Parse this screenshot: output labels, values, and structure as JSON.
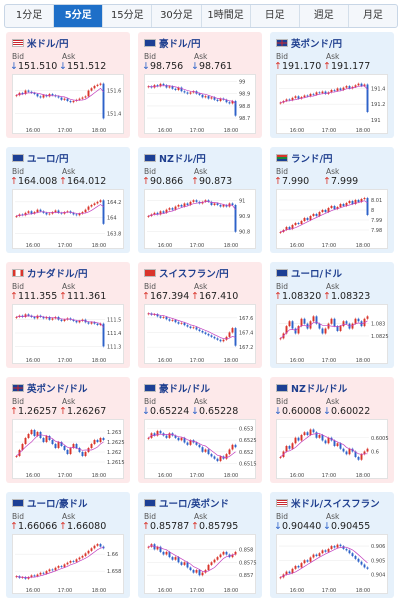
{
  "tabs": [
    {
      "label": "1分足",
      "active": false
    },
    {
      "label": "5分足",
      "active": true
    },
    {
      "label": "15分足",
      "active": false
    },
    {
      "label": "30分足",
      "active": false
    },
    {
      "label": "1時間足",
      "active": false
    },
    {
      "label": "日足",
      "active": false
    },
    {
      "label": "週足",
      "active": false
    },
    {
      "label": "月足",
      "active": false
    }
  ],
  "labels": {
    "bid": "Bid",
    "ask": "Ask"
  },
  "time_labels": [
    "16:00",
    "17:00",
    "18:00"
  ],
  "colors": {
    "up_candle": "#d9342b",
    "down_candle": "#2d62c9",
    "ma_line": "#c23fbf",
    "link": "#1f3f8f"
  },
  "pairs": [
    {
      "name": "米ドル/円",
      "flag": "us-flag-icon",
      "dir": "down",
      "bid": "151.510",
      "ask": "151.512",
      "yticks": [
        "151.6",
        "151.4"
      ],
      "ylim": [
        151.32,
        151.7
      ],
      "trend": [
        151.56,
        151.58,
        151.57,
        151.6,
        151.59,
        151.58,
        151.57,
        151.55,
        151.54,
        151.56,
        151.55,
        151.57,
        151.56,
        151.55,
        151.54,
        151.52,
        151.53,
        151.51,
        151.5,
        151.51,
        151.52,
        151.53,
        151.54,
        151.55,
        151.6,
        151.62,
        151.64,
        151.65,
        151.66,
        151.36
      ]
    },
    {
      "name": "豪ドル/円",
      "flag": "au-flag-icon",
      "dir": "down",
      "bid": "98.756",
      "ask": "98.761",
      "yticks": [
        "99",
        "98.9",
        "98.8",
        "98.7"
      ],
      "ylim": [
        98.66,
        99.02
      ],
      "trend": [
        98.96,
        98.95,
        98.97,
        98.96,
        98.98,
        98.97,
        98.95,
        98.96,
        98.94,
        98.93,
        98.95,
        98.92,
        98.91,
        98.9,
        98.91,
        98.92,
        98.9,
        98.89,
        98.87,
        98.88,
        98.86,
        98.87,
        98.85,
        98.84,
        98.86,
        98.85,
        98.83,
        98.82,
        98.84,
        98.72
      ]
    },
    {
      "name": "英ポンド/円",
      "flag": "uk-flag-icon",
      "dir": "up",
      "bid": "191.170",
      "ask": "191.177",
      "yticks": [
        "191.4",
        "191.2",
        "191"
      ],
      "ylim": [
        190.96,
        191.52
      ],
      "trend": [
        191.22,
        191.24,
        191.26,
        191.25,
        191.28,
        191.3,
        191.27,
        191.29,
        191.31,
        191.3,
        191.33,
        191.32,
        191.35,
        191.34,
        191.36,
        191.33,
        191.35,
        191.38,
        191.37,
        191.4,
        191.38,
        191.41,
        191.43,
        191.4,
        191.42,
        191.44,
        191.46,
        191.43,
        191.45,
        191.1
      ]
    },
    {
      "name": "ユーロ/円",
      "flag": "eu-flag-icon",
      "dir": "up",
      "bid": "164.008",
      "ask": "164.012",
      "yticks": [
        "164.2",
        "164",
        "163.8"
      ],
      "ylim": [
        163.74,
        164.3
      ],
      "trend": [
        164.02,
        164.04,
        164.03,
        164.06,
        164.08,
        164.05,
        164.07,
        164.1,
        164.08,
        164.06,
        164.04,
        164.05,
        164.07,
        164.09,
        164.06,
        164.05,
        164.07,
        164.08,
        164.06,
        164.04,
        164.03,
        164.05,
        164.07,
        164.1,
        164.14,
        164.16,
        164.18,
        164.2,
        164.22,
        163.92
      ]
    },
    {
      "name": "NZドル/円",
      "flag": "nz-flag-icon",
      "dir": "up",
      "bid": "90.866",
      "ask": "90.873",
      "yticks": [
        "91",
        "90.9",
        "90.8"
      ],
      "ylim": [
        90.76,
        91.04
      ],
      "trend": [
        90.9,
        90.91,
        90.92,
        90.91,
        90.93,
        90.92,
        90.94,
        90.95,
        90.94,
        90.96,
        90.97,
        90.96,
        90.98,
        90.97,
        90.99,
        91.0,
        90.99,
        90.98,
        90.99,
        91.0,
        90.99,
        90.97,
        90.98,
        90.97,
        90.96,
        90.97,
        90.96,
        90.98,
        90.97,
        90.8
      ]
    },
    {
      "name": "ランド/円",
      "flag": "za-flag-icon",
      "dir": "up",
      "bid": "7.990",
      "ask": "7.999",
      "yticks": [
        "8.01",
        "8",
        "7.99",
        "7.98"
      ],
      "ylim": [
        7.972,
        8.016
      ],
      "trend": [
        7.978,
        7.98,
        7.983,
        7.981,
        7.985,
        7.987,
        7.986,
        7.989,
        7.992,
        7.99,
        7.994,
        7.996,
        7.994,
        7.998,
        8.0,
        7.998,
        8.002,
        8.004,
        8.001,
        8.003,
        8.006,
        8.004,
        8.007,
        8.009,
        8.006,
        8.01,
        8.008,
        8.011,
        8.012,
        7.995
      ]
    },
    {
      "name": "カナダドル/円",
      "flag": "ca-flag-icon",
      "dir": "up",
      "bid": "111.355",
      "ask": "111.361",
      "yticks": [
        "111.5",
        "111.4",
        "111.3"
      ],
      "ylim": [
        111.25,
        111.58
      ],
      "trend": [
        111.52,
        111.53,
        111.52,
        111.54,
        111.53,
        111.52,
        111.51,
        111.53,
        111.52,
        111.51,
        111.52,
        111.5,
        111.51,
        111.52,
        111.5,
        111.49,
        111.5,
        111.51,
        111.5,
        111.49,
        111.48,
        111.49,
        111.5,
        111.48,
        111.47,
        111.48,
        111.47,
        111.46,
        111.47,
        111.3
      ]
    },
    {
      "name": "スイスフラン/円",
      "flag": "ch-flag-icon",
      "dir": "up",
      "bid": "167.394",
      "ask": "167.410",
      "yticks": [
        "167.6",
        "167.4",
        "167.2"
      ],
      "ylim": [
        167.12,
        167.72
      ],
      "trend": [
        167.66,
        167.64,
        167.65,
        167.62,
        167.6,
        167.61,
        167.58,
        167.56,
        167.57,
        167.54,
        167.52,
        167.53,
        167.5,
        167.48,
        167.46,
        167.47,
        167.44,
        167.42,
        167.4,
        167.38,
        167.36,
        167.34,
        167.32,
        167.3,
        167.28,
        167.3,
        167.34,
        167.4,
        167.46,
        167.22
      ]
    },
    {
      "name": "ユーロ/ドル",
      "flag": "eu-flag-icon",
      "dir": "up",
      "bid": "1.08320",
      "ask": "1.08323",
      "yticks": [
        "1.083",
        "1.0825"
      ],
      "ylim": [
        1.0818,
        1.0836
      ],
      "trend": [
        1.0824,
        1.0826,
        1.0829,
        1.0831,
        1.0828,
        1.0826,
        1.0829,
        1.0832,
        1.083,
        1.0828,
        1.0831,
        1.0833,
        1.083,
        1.0828,
        1.0826,
        1.0828,
        1.083,
        1.0832,
        1.0829,
        1.0827,
        1.0829,
        1.0831,
        1.083,
        1.0828,
        1.083,
        1.0832,
        1.0831,
        1.0829,
        1.0832,
        1.0833
      ]
    },
    {
      "name": "英ポンド/ドル",
      "flag": "uk-flag-icon",
      "dir": "up",
      "bid": "1.26257",
      "ask": "1.26267",
      "yticks": [
        "1.263",
        "1.2625",
        "1.262",
        "1.2615"
      ],
      "ylim": [
        1.2612,
        1.2634
      ],
      "trend": [
        1.2618,
        1.2621,
        1.2624,
        1.2627,
        1.2629,
        1.2631,
        1.2628,
        1.263,
        1.2627,
        1.2625,
        1.2628,
        1.2626,
        1.2624,
        1.2622,
        1.2625,
        1.2623,
        1.2621,
        1.2619,
        1.2622,
        1.2624,
        1.2622,
        1.262,
        1.2618,
        1.262,
        1.2622,
        1.2624,
        1.2626,
        1.2625,
        1.2627,
        1.2626
      ]
    },
    {
      "name": "豪ドル/ドル",
      "flag": "au-flag-icon",
      "dir": "down",
      "bid": "0.65224",
      "ask": "0.65228",
      "yticks": [
        "0.653",
        "0.6525",
        "0.652",
        "0.6515"
      ],
      "ylim": [
        0.6513,
        0.6532
      ],
      "trend": [
        0.6526,
        0.6528,
        0.6527,
        0.6529,
        0.6528,
        0.6527,
        0.6526,
        0.6528,
        0.6527,
        0.6526,
        0.6525,
        0.6526,
        0.6524,
        0.6523,
        0.6525,
        0.6524,
        0.6523,
        0.6522,
        0.652,
        0.6521,
        0.6519,
        0.6518,
        0.6517,
        0.6516,
        0.6518,
        0.6517,
        0.6519,
        0.6521,
        0.6523,
        0.6522
      ]
    },
    {
      "name": "NZドル/ドル",
      "flag": "nz-flag-icon",
      "dir": "down",
      "bid": "0.60008",
      "ask": "0.60022",
      "yticks": [
        "0.6005",
        "0.6"
      ],
      "ylim": [
        0.5994,
        0.601
      ],
      "trend": [
        0.5998,
        0.6,
        0.6002,
        0.6001,
        0.6003,
        0.6005,
        0.6004,
        0.6006,
        0.6007,
        0.6006,
        0.6008,
        0.6007,
        0.6005,
        0.6006,
        0.6004,
        0.6003,
        0.6005,
        0.6004,
        0.6002,
        0.6003,
        0.6001,
        0.6,
        0.5999,
        0.6001,
        0.6,
        0.5998,
        0.5997,
        0.5999,
        0.6,
        0.6001
      ]
    },
    {
      "name": "ユーロ/豪ドル",
      "flag": "eu-flag-icon",
      "dir": "up",
      "bid": "1.66066",
      "ask": "1.66080",
      "yticks": [
        "1.66",
        "1.658"
      ],
      "ylim": [
        1.6566,
        1.6618
      ],
      "trend": [
        1.6574,
        1.6572,
        1.6573,
        1.6571,
        1.6573,
        1.6575,
        1.6574,
        1.6576,
        1.6578,
        1.6577,
        1.658,
        1.6582,
        1.6581,
        1.6584,
        1.6586,
        1.6585,
        1.6588,
        1.659,
        1.6592,
        1.6591,
        1.6594,
        1.6596,
        1.6598,
        1.6601,
        1.6604,
        1.6607,
        1.661,
        1.6612,
        1.6609,
        1.6607
      ]
    },
    {
      "name": "ユーロ/英ポンド",
      "flag": "eu-flag-icon",
      "dir": "up",
      "bid": "0.85787",
      "ask": "0.85795",
      "yticks": [
        "0.858",
        "0.8575",
        "0.857"
      ],
      "ylim": [
        0.8567,
        0.8584
      ],
      "trend": [
        0.8581,
        0.8582,
        0.858,
        0.8581,
        0.8579,
        0.8578,
        0.8579,
        0.8577,
        0.8576,
        0.8577,
        0.8575,
        0.8574,
        0.8575,
        0.8573,
        0.8572,
        0.8571,
        0.8572,
        0.857,
        0.8571,
        0.8572,
        0.8574,
        0.8575,
        0.8576,
        0.8577,
        0.8578,
        0.8579,
        0.8578,
        0.8577,
        0.8578,
        0.8579
      ]
    },
    {
      "name": "米ドル/スイスフラン",
      "flag": "us-flag-icon",
      "dir": "down",
      "bid": "0.90440",
      "ask": "0.90455",
      "yticks": [
        "0.906",
        "0.905",
        "0.904"
      ],
      "ylim": [
        0.9034,
        0.9065
      ],
      "trend": [
        0.9038,
        0.904,
        0.9042,
        0.9041,
        0.9044,
        0.9046,
        0.9045,
        0.9048,
        0.905,
        0.9049,
        0.9052,
        0.9054,
        0.9053,
        0.9055,
        0.9057,
        0.9056,
        0.9058,
        0.906,
        0.9059,
        0.9061,
        0.906,
        0.9058,
        0.9057,
        0.9055,
        0.9053,
        0.9051,
        0.9049,
        0.9047,
        0.9045,
        0.9044
      ]
    }
  ]
}
